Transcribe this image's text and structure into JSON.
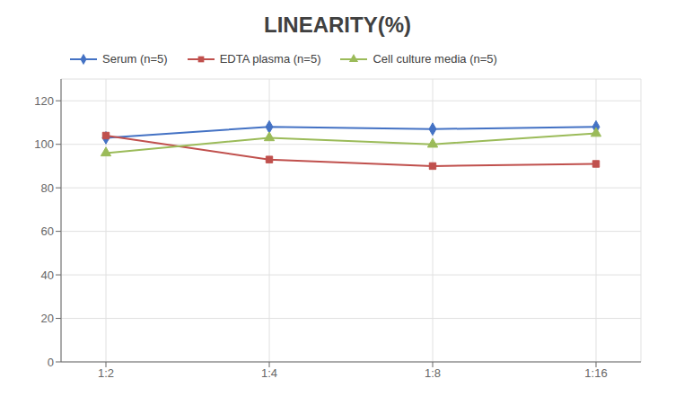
{
  "chart_data": {
    "type": "line",
    "title": "LINEARITY(%)",
    "categories": [
      "1:2",
      "1:4",
      "1:8",
      "1:16"
    ],
    "series": [
      {
        "name": "Serum (n=5)",
        "color": "#4472C4",
        "marker": "diamond",
        "values": [
          103,
          108,
          107,
          108
        ]
      },
      {
        "name": "EDTA plasma (n=5)",
        "color": "#C0504D",
        "marker": "square",
        "values": [
          104,
          93,
          90,
          91
        ]
      },
      {
        "name": "Cell culture media (n=5)",
        "color": "#9BBB59",
        "marker": "triangle",
        "values": [
          96,
          103,
          100,
          105
        ]
      }
    ],
    "ylim": [
      0,
      130
    ],
    "yticks": [
      0,
      20,
      40,
      60,
      80,
      100,
      120
    ],
    "grid": true,
    "legend": "upper left"
  }
}
